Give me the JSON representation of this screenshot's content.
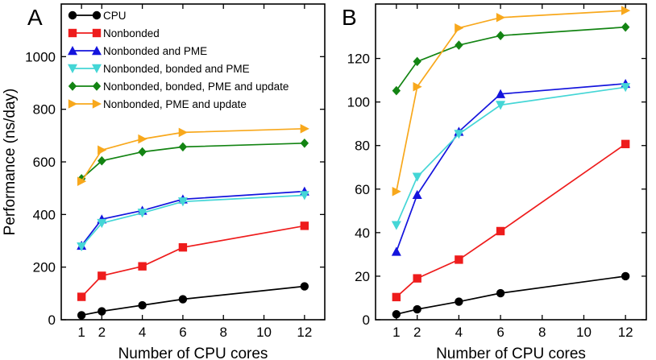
{
  "chart_data": [
    {
      "panel_label": "A",
      "type": "line",
      "xlabel": "Number of CPU cores",
      "ylabel": "Performance (ns/day)",
      "xlim": [
        0,
        13
      ],
      "ylim": [
        0,
        1200
      ],
      "x_ticks": [
        1,
        2,
        4,
        6,
        8,
        10,
        12
      ],
      "y_ticks": [
        0,
        200,
        400,
        600,
        800,
        1000
      ],
      "grid": false,
      "legend": "top-left",
      "x": [
        1,
        2,
        4,
        6,
        12
      ],
      "series": [
        {
          "name": "CPU",
          "color": "#000000",
          "marker": "circle",
          "values": [
            17,
            32,
            55,
            78,
            127
          ]
        },
        {
          "name": "Nonbonded",
          "color": "#ee1c1c",
          "marker": "square",
          "values": [
            87,
            167,
            203,
            275,
            357
          ]
        },
        {
          "name": "Nonbonded and PME",
          "color": "#1414dd",
          "marker": "triangle-up",
          "values": [
            282,
            382,
            415,
            458,
            488
          ]
        },
        {
          "name": "Nonbonded, bonded and PME",
          "color": "#44d6d6",
          "marker": "triangle-down",
          "values": [
            278,
            367,
            406,
            449,
            473
          ]
        },
        {
          "name": "Nonbonded, bonded, PME and update",
          "color": "#138413",
          "marker": "diamond",
          "values": [
            536,
            604,
            638,
            657,
            671
          ]
        },
        {
          "name": "Nonbonded, PME and update",
          "color": "#f8a81c",
          "marker": "triangle-right",
          "values": [
            526,
            645,
            687,
            712,
            726
          ]
        }
      ]
    },
    {
      "panel_label": "B",
      "type": "line",
      "xlabel": "Number of CPU cores",
      "ylabel": "",
      "xlim": [
        0,
        13
      ],
      "ylim": [
        0,
        145
      ],
      "x_ticks": [
        1,
        2,
        4,
        6,
        8,
        10,
        12
      ],
      "y_ticks": [
        0,
        20,
        40,
        60,
        80,
        100,
        120
      ],
      "grid": false,
      "x": [
        1,
        2,
        4,
        6,
        12
      ],
      "series": [
        {
          "name": "CPU",
          "color": "#000000",
          "marker": "circle",
          "values": [
            2.5,
            4.8,
            8.3,
            12.2,
            20.0
          ]
        },
        {
          "name": "Nonbonded",
          "color": "#ee1c1c",
          "marker": "square",
          "values": [
            10.4,
            19.0,
            27.6,
            40.7,
            80.7
          ]
        },
        {
          "name": "Nonbonded and PME",
          "color": "#1414dd",
          "marker": "triangle-up",
          "values": [
            31.3,
            57.4,
            86.4,
            103.7,
            108.4
          ]
        },
        {
          "name": "Nonbonded, bonded and PME",
          "color": "#44d6d6",
          "marker": "triangle-down",
          "values": [
            43.4,
            65.6,
            85.3,
            98.6,
            106.8
          ]
        },
        {
          "name": "Nonbonded, bonded, PME and update",
          "color": "#138413",
          "marker": "diamond",
          "values": [
            105.2,
            118.6,
            126.1,
            130.5,
            134.4
          ]
        },
        {
          "name": "Nonbonded, PME and update",
          "color": "#f8a81c",
          "marker": "triangle-right",
          "values": [
            58.9,
            107.0,
            134.0,
            138.8,
            142.0
          ]
        }
      ]
    }
  ]
}
